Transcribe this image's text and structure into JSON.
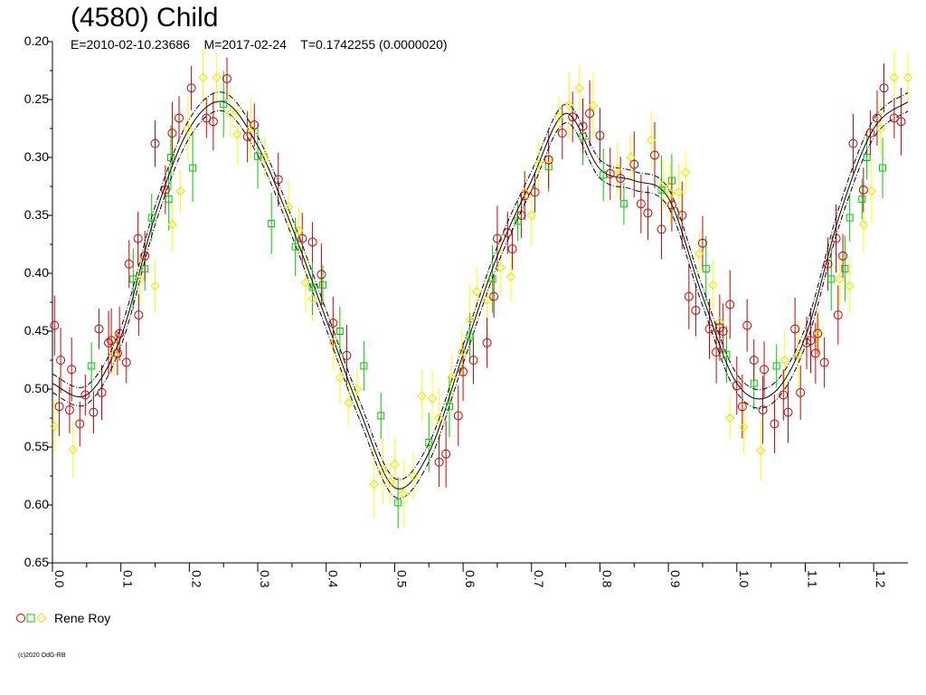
{
  "chart_data": {
    "type": "scatter",
    "title": "(4580) Child",
    "subtitle": "E=2010-02-10.23686    M=2017-02-24    T=0.1742255 (0.0000020)",
    "xlabel": "",
    "ylabel": "",
    "xlim": [
      0.0,
      1.25
    ],
    "ylim": [
      0.2,
      0.65
    ],
    "y_inverted": true,
    "x_ticks": [
      "0.0",
      "0.1",
      "0.2",
      "0.3",
      "0.4",
      "0.5",
      "0.6",
      "0.7",
      "0.8",
      "0.9",
      "1.0",
      "1.1",
      "1.2"
    ],
    "y_ticks": [
      "0.20",
      "0.25",
      "0.30",
      "0.35",
      "0.40",
      "0.45",
      "0.50",
      "0.55",
      "0.60",
      "0.65"
    ],
    "grid": false,
    "legend": {
      "position": "bottom-left",
      "label": "Rene Roy"
    },
    "fit_curve": {
      "x": [
        0.0,
        0.05,
        0.1,
        0.15,
        0.2,
        0.25,
        0.3,
        0.35,
        0.4,
        0.45,
        0.5,
        0.55,
        0.6,
        0.65,
        0.7,
        0.75,
        0.8,
        0.85,
        0.9,
        0.95,
        1.0,
        1.05,
        1.1,
        1.15,
        1.2,
        1.25
      ],
      "y": [
        0.495,
        0.505,
        0.455,
        0.35,
        0.275,
        0.252,
        0.29,
        0.36,
        0.44,
        0.52,
        0.585,
        0.555,
        0.47,
        0.385,
        0.32,
        0.262,
        0.31,
        0.32,
        0.335,
        0.42,
        0.495,
        0.505,
        0.455,
        0.35,
        0.275,
        0.252
      ],
      "envelope": 0.008
    },
    "series": [
      {
        "marker": "circle",
        "color": "#cc0000",
        "errbar_color": "#cc0000",
        "points": [
          [
            0.003,
            0.445
          ],
          [
            0.01,
            0.515
          ],
          [
            0.012,
            0.475
          ],
          [
            0.025,
            0.518
          ],
          [
            0.028,
            0.483
          ],
          [
            0.04,
            0.53
          ],
          [
            0.048,
            0.505
          ],
          [
            0.06,
            0.52
          ],
          [
            0.068,
            0.448
          ],
          [
            0.072,
            0.503
          ],
          [
            0.082,
            0.46
          ],
          [
            0.086,
            0.458
          ],
          [
            0.095,
            0.469
          ],
          [
            0.098,
            0.452
          ],
          [
            0.108,
            0.477
          ],
          [
            0.112,
            0.392
          ],
          [
            0.125,
            0.37
          ],
          [
            0.126,
            0.436
          ],
          [
            0.135,
            0.385
          ],
          [
            0.15,
            0.288
          ],
          [
            0.165,
            0.328
          ],
          [
            0.175,
            0.279
          ],
          [
            0.185,
            0.266
          ],
          [
            0.203,
            0.24
          ],
          [
            0.225,
            0.266
          ],
          [
            0.235,
            0.269
          ],
          [
            0.255,
            0.232
          ],
          [
            0.285,
            0.282
          ],
          [
            0.295,
            0.272
          ],
          [
            0.33,
            0.319
          ],
          [
            0.365,
            0.37
          ],
          [
            0.38,
            0.373
          ],
          [
            0.393,
            0.401
          ],
          [
            0.41,
            0.443
          ],
          [
            0.43,
            0.471
          ],
          [
            0.565,
            0.563
          ],
          [
            0.575,
            0.556
          ],
          [
            0.593,
            0.523
          ],
          [
            0.6,
            0.485
          ],
          [
            0.615,
            0.475
          ],
          [
            0.635,
            0.46
          ],
          [
            0.645,
            0.42
          ],
          [
            0.65,
            0.37
          ],
          [
            0.665,
            0.365
          ],
          [
            0.672,
            0.379
          ],
          [
            0.685,
            0.35
          ],
          [
            0.69,
            0.333
          ],
          [
            0.705,
            0.33
          ],
          [
            0.725,
            0.302
          ],
          [
            0.745,
            0.279
          ],
          [
            0.76,
            0.265
          ],
          [
            0.775,
            0.273
          ],
          [
            0.785,
            0.262
          ],
          [
            0.8,
            0.281
          ],
          [
            0.815,
            0.314
          ],
          [
            0.83,
            0.318
          ],
          [
            0.85,
            0.306
          ],
          [
            0.86,
            0.34
          ],
          [
            0.87,
            0.348
          ],
          [
            0.88,
            0.298
          ],
          [
            0.89,
            0.362
          ],
          [
            0.905,
            0.341
          ],
          [
            0.92,
            0.35
          ],
          [
            0.93,
            0.42
          ],
          [
            0.94,
            0.432
          ],
          [
            0.95,
            0.374
          ],
          [
            0.96,
            0.448
          ],
          [
            0.97,
            0.468
          ],
          [
            0.975,
            0.447
          ],
          [
            0.98,
            0.45
          ],
          [
            0.99,
            0.427
          ],
          [
            1.0,
            0.497
          ],
          [
            1.008,
            0.515
          ],
          [
            1.015,
            0.445
          ],
          [
            1.025,
            0.475
          ],
          [
            1.038,
            0.518
          ],
          [
            1.04,
            0.483
          ],
          [
            1.055,
            0.53
          ],
          [
            1.068,
            0.505
          ],
          [
            1.075,
            0.52
          ],
          [
            1.085,
            0.448
          ],
          [
            1.093,
            0.503
          ],
          [
            1.102,
            0.46
          ],
          [
            1.108,
            0.458
          ],
          [
            1.115,
            0.469
          ],
          [
            1.118,
            0.452
          ],
          [
            1.128,
            0.477
          ],
          [
            1.133,
            0.392
          ],
          [
            1.145,
            0.37
          ],
          [
            1.148,
            0.436
          ],
          [
            1.155,
            0.385
          ],
          [
            1.17,
            0.288
          ],
          [
            1.185,
            0.328
          ],
          [
            1.195,
            0.279
          ],
          [
            1.205,
            0.266
          ],
          [
            1.215,
            0.24
          ],
          [
            1.23,
            0.266
          ],
          [
            1.24,
            0.269
          ]
        ]
      },
      {
        "marker": "square",
        "color": "#00cc00",
        "errbar_color": "#00cc00",
        "points": [
          [
            0.057,
            0.48
          ],
          [
            0.118,
            0.405
          ],
          [
            0.135,
            0.396
          ],
          [
            0.145,
            0.352
          ],
          [
            0.17,
            0.336
          ],
          [
            0.173,
            0.3
          ],
          [
            0.205,
            0.309
          ],
          [
            0.25,
            0.254
          ],
          [
            0.3,
            0.299
          ],
          [
            0.32,
            0.357
          ],
          [
            0.355,
            0.377
          ],
          [
            0.38,
            0.412
          ],
          [
            0.395,
            0.41
          ],
          [
            0.42,
            0.45
          ],
          [
            0.455,
            0.48
          ],
          [
            0.48,
            0.523
          ],
          [
            0.505,
            0.598
          ],
          [
            0.55,
            0.546
          ],
          [
            0.58,
            0.515
          ],
          [
            0.61,
            0.455
          ],
          [
            0.643,
            0.405
          ],
          [
            0.68,
            0.355
          ],
          [
            0.725,
            0.308
          ],
          [
            0.775,
            0.282
          ],
          [
            0.805,
            0.315
          ],
          [
            0.835,
            0.34
          ],
          [
            0.89,
            0.328
          ],
          [
            0.905,
            0.32
          ],
          [
            0.955,
            0.396
          ],
          [
            0.985,
            0.47
          ],
          [
            1.025,
            0.495
          ],
          [
            1.058,
            0.48
          ],
          [
            1.138,
            0.405
          ],
          [
            1.158,
            0.396
          ],
          [
            1.165,
            0.352
          ],
          [
            1.183,
            0.336
          ],
          [
            1.19,
            0.3
          ],
          [
            1.213,
            0.309
          ]
        ]
      },
      {
        "marker": "diamond",
        "color": "#e6e600",
        "errbar_color": "#ffff00",
        "points": [
          [
            0.003,
            0.532
          ],
          [
            0.03,
            0.552
          ],
          [
            0.09,
            0.47
          ],
          [
            0.128,
            0.405
          ],
          [
            0.15,
            0.411
          ],
          [
            0.175,
            0.358
          ],
          [
            0.187,
            0.329
          ],
          [
            0.198,
            0.275
          ],
          [
            0.22,
            0.231
          ],
          [
            0.24,
            0.231
          ],
          [
            0.26,
            0.262
          ],
          [
            0.27,
            0.28
          ],
          [
            0.29,
            0.275
          ],
          [
            0.31,
            0.3
          ],
          [
            0.345,
            0.343
          ],
          [
            0.36,
            0.363
          ],
          [
            0.37,
            0.408
          ],
          [
            0.38,
            0.422
          ],
          [
            0.41,
            0.46
          ],
          [
            0.42,
            0.49
          ],
          [
            0.433,
            0.512
          ],
          [
            0.445,
            0.5
          ],
          [
            0.47,
            0.582
          ],
          [
            0.483,
            0.57
          ],
          [
            0.493,
            0.58
          ],
          [
            0.5,
            0.565
          ],
          [
            0.513,
            0.59
          ],
          [
            0.527,
            0.575
          ],
          [
            0.54,
            0.506
          ],
          [
            0.555,
            0.508
          ],
          [
            0.565,
            0.525
          ],
          [
            0.583,
            0.49
          ],
          [
            0.598,
            0.468
          ],
          [
            0.61,
            0.44
          ],
          [
            0.62,
            0.416
          ],
          [
            0.635,
            0.423
          ],
          [
            0.655,
            0.395
          ],
          [
            0.67,
            0.403
          ],
          [
            0.69,
            0.33
          ],
          [
            0.7,
            0.35
          ],
          [
            0.71,
            0.306
          ],
          [
            0.725,
            0.301
          ],
          [
            0.74,
            0.265
          ],
          [
            0.755,
            0.255
          ],
          [
            0.77,
            0.24
          ],
          [
            0.79,
            0.255
          ],
          [
            0.825,
            0.31
          ],
          [
            0.845,
            0.3
          ],
          [
            0.875,
            0.285
          ],
          [
            0.893,
            0.324
          ],
          [
            0.903,
            0.331
          ],
          [
            0.915,
            0.33
          ],
          [
            0.925,
            0.313
          ],
          [
            0.945,
            0.383
          ],
          [
            0.965,
            0.41
          ],
          [
            0.975,
            0.442
          ],
          [
            0.99,
            0.525
          ],
          [
            1.01,
            0.533
          ],
          [
            1.035,
            0.553
          ],
          [
            1.07,
            0.475
          ],
          [
            1.09,
            0.47
          ],
          [
            1.12,
            0.452
          ],
          [
            1.15,
            0.405
          ],
          [
            1.165,
            0.411
          ],
          [
            1.185,
            0.358
          ],
          [
            1.197,
            0.329
          ],
          [
            1.21,
            0.275
          ],
          [
            1.23,
            0.231
          ],
          [
            1.25,
            0.231
          ]
        ]
      }
    ]
  },
  "copyright": "(c)2020 OdG-RB"
}
